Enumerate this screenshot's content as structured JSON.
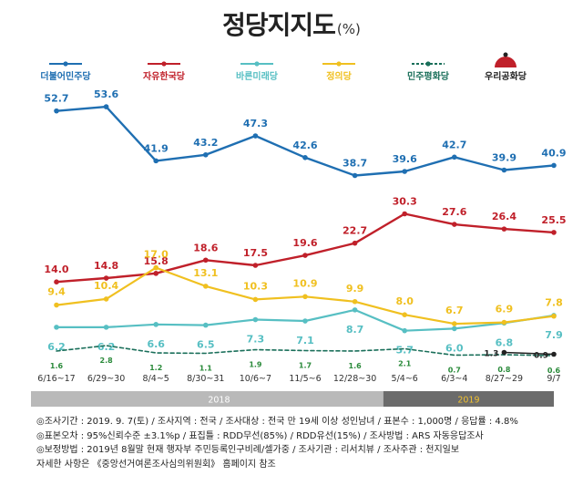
{
  "title": "정당지지도",
  "title_unit": "(%)",
  "colors": {
    "dem": "#1f6fb2",
    "lkp": "#c0202a",
    "bar": "#57bfc3",
    "justice": "#f0c020",
    "peace": "#1a6f5a",
    "rep": "#222222",
    "period_2018": "#b9b9b9",
    "period_2019": "#6b6b6b",
    "period_text_2019": "#f2c230"
  },
  "chart_data": {
    "type": "line",
    "title": "정당지지도",
    "x": [
      "6/16~17",
      "6/29~30",
      "8/4~5",
      "8/30~31",
      "10/6~7",
      "11/5~6",
      "12/28~30",
      "5/4~6",
      "6/3~4",
      "8/27~29",
      "9/7"
    ],
    "periods": [
      {
        "label": "2018",
        "from": 0,
        "to": 6
      },
      {
        "label": "2019",
        "from": 7,
        "to": 10
      }
    ],
    "series": [
      {
        "name": "더불어민주당",
        "key": "dem",
        "values": [
          52.7,
          53.6,
          41.9,
          43.2,
          47.3,
          42.6,
          38.7,
          39.6,
          42.7,
          39.9,
          40.9
        ]
      },
      {
        "name": "자유한국당",
        "key": "lkp",
        "values": [
          14.0,
          14.8,
          15.8,
          18.6,
          17.5,
          19.6,
          22.7,
          30.3,
          27.6,
          26.4,
          25.5
        ]
      },
      {
        "name": "바른미래당",
        "key": "bar",
        "values": [
          6.2,
          6.2,
          6.6,
          6.5,
          7.3,
          7.1,
          8.7,
          5.7,
          6.0,
          6.8,
          7.9
        ]
      },
      {
        "name": "정의당",
        "key": "justice",
        "values": [
          9.4,
          10.4,
          17.0,
          13.1,
          10.3,
          10.9,
          9.9,
          8.0,
          6.7,
          6.9,
          7.8
        ]
      },
      {
        "name": "민주평화당",
        "key": "peace",
        "values": [
          1.6,
          2.8,
          1.2,
          1.1,
          1.9,
          1.7,
          1.6,
          2.1,
          0.7,
          0.8,
          0.6
        ]
      },
      {
        "name": "우리공화당",
        "key": "rep",
        "values": [
          null,
          null,
          null,
          null,
          null,
          null,
          null,
          null,
          null,
          1.3,
          0.9
        ]
      }
    ],
    "value_labels": {
      "dem": [
        "52.7",
        "53.6",
        "41.9",
        "43.2",
        "47.3",
        "42.6",
        "38.7",
        "39.6",
        "42.7",
        "39.9",
        "40.9"
      ],
      "lkp": [
        "14.0",
        "14.8",
        "15.8",
        "18.6",
        "17.5",
        "19.6",
        "22.7",
        "30.3",
        "27.6",
        "26.4",
        "25.5"
      ],
      "bar": [
        "6.2",
        "6.2",
        "6.6",
        "6.5",
        "7.3",
        "7.1",
        "8.7",
        "5.7",
        "6.0",
        "6.8",
        "7.9"
      ],
      "justice": [
        "9.4",
        "10.4",
        "17.0",
        "13.1",
        "10.3",
        "10.9",
        "9.9",
        "8.0",
        "6.7",
        "6.9",
        "7.8"
      ],
      "peace": [
        "1.6",
        "2.8",
        "1.2",
        "1.1",
        "1.9",
        "1.7",
        "1.6",
        "2.1",
        "0.7",
        "0.8",
        "0.6"
      ],
      "rep": [
        null,
        null,
        null,
        null,
        null,
        null,
        null,
        null,
        null,
        "1.3",
        "0.9"
      ]
    },
    "grid": false,
    "legend_position": "top"
  },
  "notes": [
    "◎조사기간 : 2019. 9. 7(토) / 조사지역 : 전국 / 조사대상 : 전국 만 19세 이상 성인남녀 / 표본수 : 1,000명 / 응답률 : 4.8%",
    "◎표본오차 : 95%신뢰수준 ±3.1%p / 표집틀 : RDD무선(85%) / RDD유선(15%) / 조사방법 : ARS 자동응답조사",
    "◎보정방법 : 2019년 8월말 현재 행자부 주민등록인구비례/셀가중 / 조사기관 : 리서치뷰 / 조사주관 : 천지일보",
    "자세한 사항은 《중앙선거여론조사심의위원회》 홈페이지 참조"
  ]
}
